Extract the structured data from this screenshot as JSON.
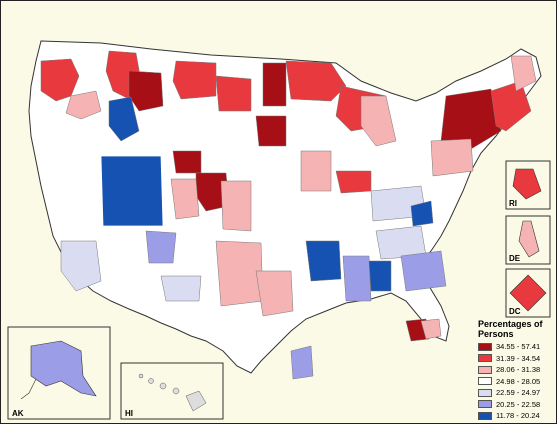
{
  "legend": {
    "title": "Percentages of Persons",
    "items": [
      {
        "label": "34.55 - 57.41",
        "color": "#a50f15"
      },
      {
        "label": "31.39 - 34.54",
        "color": "#e8393f"
      },
      {
        "label": "28.06 - 31.38",
        "color": "#f6b3b3"
      },
      {
        "label": "24.98 - 28.05",
        "color": "#ffffff"
      },
      {
        "label": "22.59 - 24.97",
        "color": "#dadcf2"
      },
      {
        "label": "20.25 - 22.58",
        "color": "#9b9ee6"
      },
      {
        "label": "11.78 - 20.24",
        "color": "#1552b2"
      }
    ]
  },
  "insets": {
    "ak": "AK",
    "hi": "HI",
    "ri": "RI",
    "de": "DE",
    "dc": "DC"
  },
  "colors": {
    "background": "#fbfae6",
    "border": "#222222",
    "region_line": "#6b6b6b"
  }
}
